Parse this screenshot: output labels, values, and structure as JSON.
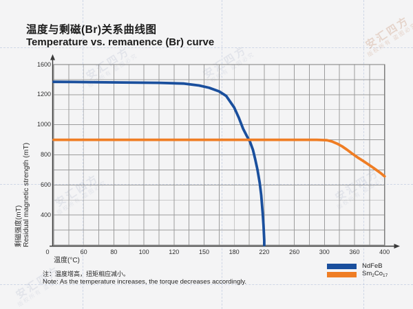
{
  "title": {
    "zh": "温度与剩磁(Br)关系曲线图",
    "en": "Temperature vs. remanence (Br) curve"
  },
  "axes": {
    "x_title_zh": "温度(°C)",
    "y_title_zh": "剩磁强度(mT)",
    "y_title_en": "Residual magnetic strength (mT)"
  },
  "note": {
    "zh": "注：温度增高，扭矩相应减小。",
    "en": "Note: As the temperature increases, the torque decreases accordingly."
  },
  "legend": {
    "position": "bottom-right",
    "items": [
      {
        "name": "NdFeB",
        "color": "#1a4f9d"
      },
      {
        "name": "Sm2Co17",
        "color": "#ef7d24",
        "parts": {
          "p1": "Sm",
          "s1": "2",
          "p2": "Co",
          "s2": "17"
        }
      }
    ]
  },
  "watermark": {
    "line1": "安汇四方",
    "line2": "版权所有 盗图必究"
  },
  "chart_data": {
    "type": "line",
    "title": "Temperature vs. remanence (Br) curve",
    "title_zh": "温度与剩磁(Br)关系曲线图",
    "xlabel": "温度(°C)",
    "ylabel": "Residual magnetic strength (mT)",
    "x_ticks": [
      0,
      60,
      80,
      100,
      120,
      150,
      180,
      220,
      260,
      300,
      360,
      400
    ],
    "y_ticks": [
      0,
      400,
      600,
      800,
      1000,
      1200,
      1600
    ],
    "grid": true,
    "legend_position": "bottom-right",
    "axis_layout": "ticks drawn at uniform pixel spacing (stylized non-linear scale), minor gridline between each labeled tick",
    "series": [
      {
        "name": "NdFeB",
        "color": "#1a4f9d",
        "points": [
          [
            0,
            1370
          ],
          [
            40,
            1368
          ],
          [
            80,
            1363
          ],
          [
            110,
            1357
          ],
          [
            130,
            1347
          ],
          [
            145,
            1322
          ],
          [
            155,
            1292
          ],
          [
            165,
            1243
          ],
          [
            172,
            1192
          ],
          [
            180,
            1115
          ],
          [
            186,
            1048
          ],
          [
            192,
            972
          ],
          [
            197,
            923
          ],
          [
            201,
            888
          ],
          [
            205,
            833
          ],
          [
            208,
            770
          ],
          [
            211,
            700
          ],
          [
            214,
            614
          ],
          [
            216,
            532
          ],
          [
            218,
            408
          ],
          [
            219,
            268
          ],
          [
            220,
            60
          ],
          [
            220,
            0
          ]
        ]
      },
      {
        "name": "Sm2Co17",
        "color": "#ef7d24",
        "points": [
          [
            0,
            900
          ],
          [
            60,
            900
          ],
          [
            120,
            900
          ],
          [
            200,
            900
          ],
          [
            260,
            900
          ],
          [
            290,
            900
          ],
          [
            305,
            897
          ],
          [
            315,
            889
          ],
          [
            325,
            875
          ],
          [
            335,
            857
          ],
          [
            345,
            834
          ],
          [
            355,
            809
          ],
          [
            365,
            780
          ],
          [
            375,
            748
          ],
          [
            385,
            714
          ],
          [
            395,
            678
          ],
          [
            400,
            657
          ]
        ]
      }
    ]
  }
}
